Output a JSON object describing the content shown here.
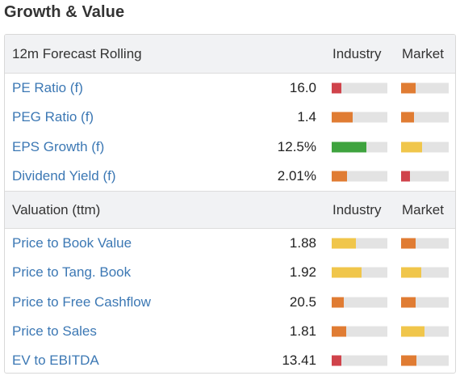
{
  "title": "Growth & Value",
  "colors": {
    "red": "#d0434b",
    "orange": "#e07c33",
    "yellow": "#f0c64b",
    "green": "#3ea33e",
    "link": "#3c78b4"
  },
  "sections": [
    {
      "label": "12m Forecast Rolling",
      "industry_label": "Industry",
      "market_label": "Market",
      "rows": [
        {
          "name": "PE Ratio (f)",
          "value": "16.0",
          "industry": {
            "level": 0.17,
            "color": "red"
          },
          "market": {
            "level": 0.3,
            "color": "orange"
          }
        },
        {
          "name": "PEG Ratio (f)",
          "value": "1.4",
          "industry": {
            "level": 0.38,
            "color": "orange"
          },
          "market": {
            "level": 0.27,
            "color": "orange"
          }
        },
        {
          "name": "EPS Growth (f)",
          "value": "12.5%",
          "industry": {
            "level": 0.63,
            "color": "green"
          },
          "market": {
            "level": 0.44,
            "color": "yellow"
          }
        },
        {
          "name": "Dividend Yield (f)",
          "value": "2.01%",
          "industry": {
            "level": 0.28,
            "color": "orange"
          },
          "market": {
            "level": 0.18,
            "color": "red"
          }
        }
      ]
    },
    {
      "label": "Valuation (ttm)",
      "industry_label": "Industry",
      "market_label": "Market",
      "rows": [
        {
          "name": "Price to Book Value",
          "value": "1.88",
          "industry": {
            "level": 0.43,
            "color": "yellow"
          },
          "market": {
            "level": 0.3,
            "color": "orange"
          }
        },
        {
          "name": "Price to Tang. Book",
          "value": "1.92",
          "industry": {
            "level": 0.54,
            "color": "yellow"
          },
          "market": {
            "level": 0.43,
            "color": "yellow"
          }
        },
        {
          "name": "Price to Free Cashflow",
          "value": "20.5",
          "industry": {
            "level": 0.22,
            "color": "orange"
          },
          "market": {
            "level": 0.3,
            "color": "orange"
          }
        },
        {
          "name": "Price to Sales",
          "value": "1.81",
          "industry": {
            "level": 0.26,
            "color": "orange"
          },
          "market": {
            "level": 0.49,
            "color": "yellow"
          }
        },
        {
          "name": "EV to EBITDA",
          "value": "13.41",
          "industry": {
            "level": 0.17,
            "color": "red"
          },
          "market": {
            "level": 0.33,
            "color": "orange"
          }
        }
      ]
    }
  ]
}
